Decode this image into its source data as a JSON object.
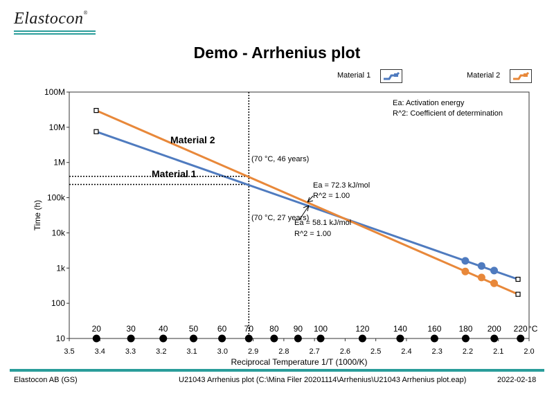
{
  "header": {
    "logo_text": "Elastocon",
    "logo_mark": "®",
    "title": "Demo -  Arrhenius plot"
  },
  "legend": [
    {
      "name": "Material 1",
      "color": "#4f7bbf"
    },
    {
      "name": "Material 2",
      "color": "#e8883a"
    }
  ],
  "footer": {
    "left": "Elastocon AB (GS)",
    "center": "U21043 Arrhenius plot (C:\\Mina Filer 20201114\\Arrhenius\\U21043 Arrhenius plot.eap)",
    "date": "2022-02-18"
  },
  "chart_data": {
    "type": "scatter",
    "xlabel": "Reciprocal Temperature 1/T (1000/K)",
    "ylabel": "Time (h)",
    "xlim": [
      3.5,
      2.0
    ],
    "x_reversed": true,
    "y_scale": "log",
    "ylim": [
      10,
      100000000
    ],
    "x_ticks": [
      3.5,
      3.4,
      3.3,
      3.2,
      3.1,
      3.0,
      2.9,
      2.8,
      2.7,
      2.6,
      2.5,
      2.4,
      2.3,
      2.2,
      2.1,
      2.0
    ],
    "x_tick_labels": [
      "3.5",
      "3.4",
      "3.3",
      "3.2",
      "3.1",
      "3.0",
      "2.9",
      "2.8",
      "2.7",
      "2.6",
      "2.5",
      "2.4",
      "2.3",
      "2.2",
      "2.1",
      "2.0"
    ],
    "y_ticks": [
      10,
      100,
      1000,
      10000,
      100000,
      1000000,
      10000000,
      100000000
    ],
    "y_tick_labels": [
      "10",
      "100",
      "1k",
      "10k",
      "100k",
      "1M",
      "10M",
      "100M"
    ],
    "temperature_scale": {
      "values_c": [
        20,
        30,
        40,
        50,
        60,
        70,
        80,
        90,
        100,
        120,
        140,
        160,
        180,
        200,
        220
      ],
      "labels": [
        "20",
        "30",
        "40",
        "50",
        "60",
        "70",
        "80",
        "90",
        "100",
        "120",
        "140",
        "160",
        "180",
        "200",
        "220"
      ],
      "unit": "°C"
    },
    "notes": [
      "Ea: Activation energy",
      "R^2: Coefficient of determination"
    ],
    "series": [
      {
        "name": "Material 1",
        "color": "#4f7bbf",
        "label": "Material 1",
        "fit": [
          [
            3.412,
            7500000
          ],
          [
            2.036,
            480
          ]
        ],
        "points": [
          [
            2.208,
            1600
          ],
          [
            2.155,
            1150
          ],
          [
            2.114,
            850
          ]
        ],
        "ea_text": "Ea = 58.1 kJ/mol",
        "r2_text": "R^2 = 1.00",
        "lookup_text": "(70 °C, 27  years)",
        "lookup_value": 236500
      },
      {
        "name": "Material 2",
        "color": "#e8883a",
        "label": "Material 2",
        "fit": [
          [
            3.412,
            30000000
          ],
          [
            2.036,
            180
          ]
        ],
        "points": [
          [
            2.208,
            800
          ],
          [
            2.155,
            540
          ],
          [
            2.114,
            370
          ]
        ],
        "ea_text": "Ea = 72.3 kJ/mol",
        "r2_text": "R^2 = 1.00",
        "lookup_text": "(70 °C, 46  years)",
        "lookup_value": 403000
      }
    ],
    "reference_temperature_c": 70
  }
}
